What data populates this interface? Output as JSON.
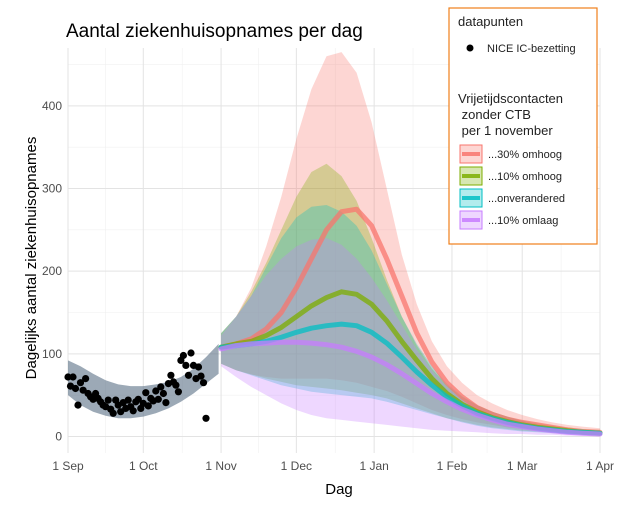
{
  "chart_data": {
    "type": "line",
    "title": "Aantal ziekenhuisopnames per dag",
    "xlabel": "Dag",
    "ylabel": "Dagelijks aantal ziekenhuisopnames",
    "x_ticks": [
      "1 Sep",
      "1 Oct",
      "1 Nov",
      "1 Dec",
      "1 Jan",
      "1 Feb",
      "1 Mar",
      "1 Apr"
    ],
    "y_ticks": [
      0,
      100,
      200,
      300,
      400
    ],
    "xlim": [
      0,
      212
    ],
    "ylim": [
      -20,
      470
    ],
    "grid": true,
    "legend_position": "top-right",
    "x_unit": "days from 1 Sep",
    "legend": {
      "points_title": "datapunten",
      "points_label": "NICE IC-bezetting",
      "scenario_title_lines": [
        "Vrijetijdscontacten",
        " zonder CTB",
        " per 1 november"
      ]
    },
    "observed_band": {
      "x": [
        0,
        5,
        10,
        15,
        20,
        25,
        30,
        35,
        40,
        45,
        50,
        55,
        60
      ],
      "lower": [
        50,
        38,
        30,
        25,
        22,
        22,
        24,
        28,
        34,
        42,
        52,
        64,
        76
      ],
      "upper": [
        92,
        85,
        76,
        68,
        63,
        61,
        61,
        63,
        66,
        72,
        82,
        96,
        112
      ]
    },
    "points": {
      "label": "NICE IC-bezetting",
      "color": "#000000",
      "x": [
        0,
        1,
        2,
        3,
        4,
        5,
        6,
        7,
        8,
        9,
        10,
        11,
        12,
        13,
        14,
        15,
        16,
        17,
        18,
        19,
        20,
        21,
        22,
        23,
        24,
        25,
        26,
        27,
        28,
        29,
        30,
        31,
        32,
        33,
        34,
        35,
        36,
        37,
        38,
        39,
        40,
        41,
        42,
        43,
        44,
        45,
        46,
        47,
        48,
        49,
        50,
        51,
        52,
        53,
        54,
        55
      ],
      "y": [
        72,
        61,
        72,
        58,
        38,
        65,
        56,
        70,
        52,
        48,
        45,
        52,
        46,
        42,
        38,
        36,
        44,
        33,
        28,
        44,
        38,
        30,
        41,
        34,
        44,
        36,
        31,
        42,
        45,
        34,
        40,
        53,
        37,
        46,
        43,
        55,
        45,
        60,
        52,
        41,
        64,
        74,
        66,
        62,
        54,
        92,
        98,
        86,
        74,
        101,
        86,
        70,
        84,
        73,
        65,
        22
      ]
    },
    "series": [
      {
        "name": "...30% omhoog",
        "color": "#f8766d",
        "x": [
          61,
          67,
          73,
          79,
          85,
          91,
          97,
          103,
          109,
          115,
          121,
          127,
          133,
          139,
          145,
          151,
          157,
          163,
          169,
          175,
          181,
          187,
          193,
          199,
          205,
          212
        ],
        "y": [
          108,
          112,
          118,
          130,
          150,
          180,
          215,
          250,
          272,
          275,
          255,
          215,
          170,
          125,
          90,
          65,
          48,
          35,
          27,
          21,
          17,
          14,
          11,
          8,
          6,
          5
        ],
        "lower": [
          88,
          80,
          75,
          72,
          70,
          70,
          70,
          70,
          68,
          65,
          60,
          55,
          48,
          40,
          32,
          26,
          21,
          17,
          14,
          11,
          9,
          7,
          5,
          4,
          3,
          2
        ],
        "upper": [
          125,
          145,
          180,
          230,
          290,
          360,
          420,
          460,
          465,
          440,
          380,
          300,
          220,
          160,
          115,
          85,
          65,
          50,
          40,
          32,
          26,
          21,
          17,
          14,
          12,
          10
        ]
      },
      {
        "name": "...10% omhoog",
        "color": "#7cae00",
        "x": [
          61,
          67,
          73,
          79,
          85,
          91,
          97,
          103,
          109,
          115,
          121,
          127,
          133,
          139,
          145,
          151,
          157,
          163,
          169,
          175,
          181,
          187,
          193,
          199,
          205,
          212
        ],
        "y": [
          108,
          112,
          115,
          122,
          132,
          145,
          158,
          168,
          175,
          172,
          160,
          140,
          115,
          92,
          70,
          52,
          39,
          30,
          23,
          18,
          14,
          11,
          9,
          7,
          5,
          4
        ],
        "lower": [
          88,
          80,
          75,
          70,
          66,
          62,
          60,
          58,
          56,
          53,
          50,
          46,
          40,
          34,
          28,
          22,
          18,
          14,
          11,
          9,
          7,
          6,
          5,
          4,
          3,
          2
        ],
        "upper": [
          125,
          145,
          175,
          210,
          250,
          290,
          320,
          330,
          315,
          285,
          240,
          190,
          145,
          110,
          82,
          62,
          48,
          38,
          30,
          24,
          19,
          16,
          13,
          11,
          9,
          8
        ]
      },
      {
        "name": "...onverandered",
        "color": "#00bfc4",
        "x": [
          61,
          67,
          73,
          79,
          85,
          91,
          97,
          103,
          109,
          115,
          121,
          127,
          133,
          139,
          145,
          151,
          157,
          163,
          169,
          175,
          181,
          187,
          193,
          199,
          205,
          212
        ],
        "y": [
          108,
          110,
          112,
          115,
          120,
          126,
          131,
          134,
          136,
          134,
          126,
          113,
          96,
          78,
          62,
          48,
          37,
          28,
          22,
          17,
          13,
          10,
          8,
          6,
          5,
          4
        ],
        "lower": [
          88,
          80,
          74,
          68,
          62,
          58,
          54,
          52,
          50,
          48,
          46,
          42,
          37,
          32,
          27,
          22,
          17,
          13,
          10,
          8,
          6,
          5,
          4,
          3,
          2,
          2
        ],
        "upper": [
          125,
          145,
          170,
          205,
          240,
          265,
          278,
          280,
          272,
          255,
          225,
          185,
          145,
          112,
          85,
          64,
          49,
          38,
          30,
          24,
          19,
          15,
          12,
          10,
          8,
          7
        ]
      },
      {
        "name": "...10% omlaag",
        "color": "#c77cff",
        "x": [
          61,
          67,
          73,
          79,
          85,
          91,
          97,
          103,
          109,
          115,
          121,
          127,
          133,
          139,
          145,
          151,
          157,
          163,
          169,
          175,
          181,
          187,
          193,
          199,
          205,
          212
        ],
        "y": [
          106,
          110,
          112,
          113,
          114,
          114,
          113,
          111,
          108,
          103,
          96,
          87,
          76,
          64,
          52,
          42,
          33,
          26,
          20,
          15,
          12,
          9,
          7,
          5,
          4,
          3
        ],
        "lower": [
          85,
          72,
          60,
          50,
          40,
          32,
          26,
          22,
          20,
          18,
          16,
          14,
          12,
          10,
          8,
          7,
          6,
          5,
          4,
          3,
          3,
          2,
          2,
          1,
          1,
          1
        ],
        "upper": [
          122,
          145,
          170,
          195,
          215,
          230,
          238,
          240,
          232,
          215,
          192,
          165,
          135,
          105,
          80,
          60,
          46,
          36,
          28,
          22,
          18,
          14,
          12,
          10,
          8,
          7
        ]
      }
    ]
  }
}
